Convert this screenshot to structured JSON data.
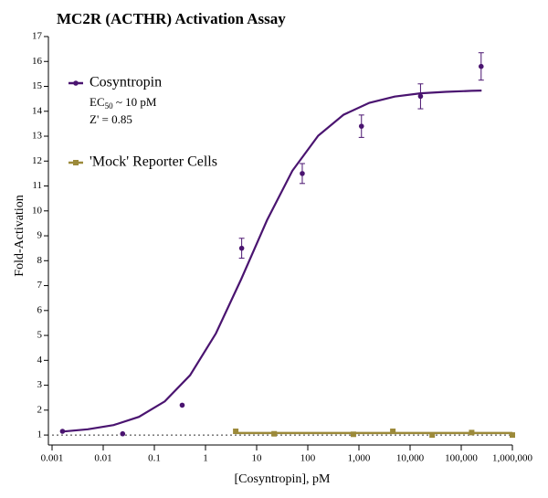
{
  "chart_data": {
    "type": "dose-response",
    "title": "MC2R (ACTHR) Activation Assay",
    "x_label": "[Cosyntropin], pM",
    "y_label": "Fold-Activation",
    "log_x": true,
    "xlim": [
      0.001,
      1000000
    ],
    "xticks": [
      0.001,
      0.01,
      0.1,
      1,
      10,
      100,
      {
        "value": 1000,
        "label": "1,000"
      },
      {
        "value": 10000,
        "label": "10,000"
      },
      {
        "value": 100000,
        "label": "100,000"
      },
      {
        "value": 1000000,
        "label": "1,000,000"
      }
    ],
    "ylim": [
      0.6,
      17
    ],
    "yticks": [
      1,
      2,
      3,
      4,
      5,
      6,
      7,
      8,
      9,
      10,
      11,
      12,
      13,
      14,
      15,
      16,
      17
    ],
    "reference_line": 1,
    "series": [
      {
        "name": "Cosyntropin",
        "color": "#4a1470",
        "marker": "circle",
        "x": [
          0.0016,
          0.024,
          0.35,
          5.1,
          78,
          1120,
          16000,
          245000
        ],
        "values": [
          1.15,
          1.05,
          2.2,
          8.5,
          11.5,
          13.4,
          14.6,
          15.8
        ],
        "errors": [
          null,
          null,
          null,
          0.4,
          0.4,
          0.45,
          0.5,
          0.55
        ],
        "fit_x": [
          0.0016,
          0.005,
          0.016,
          0.05,
          0.16,
          0.5,
          1.6,
          5,
          16,
          50,
          160,
          500,
          1600,
          5000,
          16000,
          50000,
          160000,
          250000
        ],
        "fit_values": [
          1.14,
          1.23,
          1.4,
          1.73,
          2.35,
          3.4,
          5.08,
          7.26,
          9.63,
          11.61,
          13.02,
          13.86,
          14.34,
          14.59,
          14.72,
          14.78,
          14.82,
          14.83
        ]
      },
      {
        "name": "'Mock' Reporter Cells",
        "color": "#9c8a3a",
        "marker": "square",
        "x": [
          3.9,
          22,
          780,
          4600,
          27000,
          160000,
          1000000
        ],
        "values": [
          1.15,
          1.05,
          1.03,
          1.15,
          1.0,
          1.1,
          1.0
        ],
        "errors": [
          null,
          null,
          null,
          null,
          null,
          null,
          null
        ],
        "fit_x": [
          3.9,
          1000000
        ],
        "fit_values": [
          1.08,
          1.08
        ]
      }
    ],
    "annotations": [
      {
        "parts": [
          "EC",
          "50",
          " ~ 10 pM"
        ]
      },
      {
        "parts": [
          "Z' = 0.85"
        ]
      }
    ],
    "legend": "top-left"
  }
}
